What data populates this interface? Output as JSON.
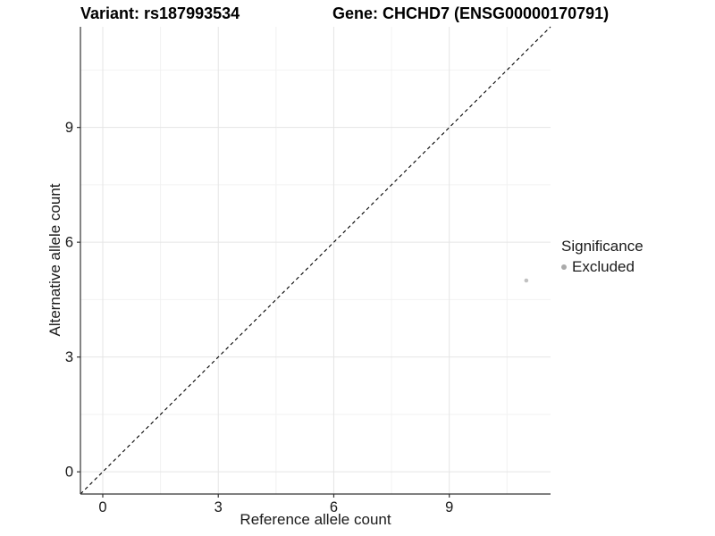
{
  "figure": {
    "title_left": "Variant: rs187993534",
    "title_right": "Gene: CHCHD7 (ENSG00000170791)"
  },
  "chart_data": {
    "type": "scatter",
    "title": "Variant: rs187993534 — Gene: CHCHD7 (ENSG00000170791)",
    "xlabel": "Reference allele count",
    "ylabel": "Alternative allele count",
    "xlim": [
      -0.58,
      11.63
    ],
    "ylim": [
      -0.58,
      11.63
    ],
    "x_ticks": [
      0,
      3,
      6,
      9
    ],
    "y_ticks": [
      0,
      3,
      6,
      9
    ],
    "x_minor_ticks": [
      1.5,
      4.5,
      7.5,
      10.5
    ],
    "y_minor_ticks": [
      1.5,
      4.5,
      7.5,
      10.5
    ],
    "grid": true,
    "identity_line": {
      "slope": 1,
      "intercept": 0,
      "style": "dashed",
      "color": "#000000"
    },
    "series": [
      {
        "name": "Excluded",
        "color": "#c1c1c1",
        "point_radius": 2.3,
        "points": [
          {
            "x": 11,
            "y": 5
          }
        ]
      }
    ],
    "legend": {
      "title": "Significance",
      "position": "right",
      "entries": [
        {
          "label": "Excluded",
          "color": "#aaaaaa"
        }
      ]
    },
    "colors": {
      "grid_major": "#e5e5e5",
      "grid_minor": "#f2f2f2",
      "axis_line": "#333333",
      "text": "#1a1a1a"
    }
  }
}
